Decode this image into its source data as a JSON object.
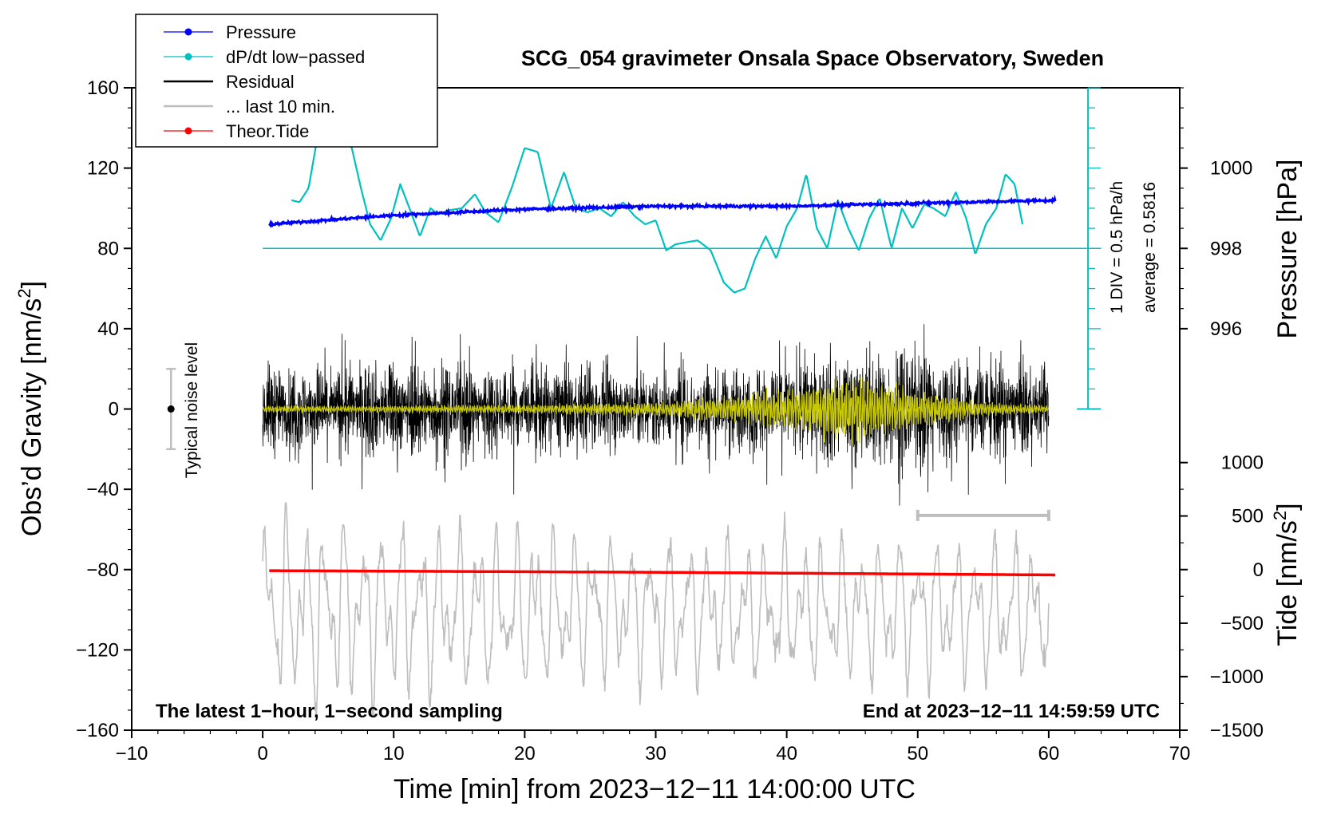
{
  "chart_data": {
    "type": "line",
    "title": "SCG_054 gravimeter Onsala Space Observatory, Sweden",
    "xlabel": "Time [min] from 2023−12−11 14:00:00 UTC",
    "ylabel_left": "Obs’d Gravity [nm/s",
    "ylabel_right_pressure": "Pressure [hPa]",
    "ylabel_right_tide": "Tide [nm/s",
    "superscript_2": "2",
    "close_bracket": "]",
    "xlim": [
      -10,
      70
    ],
    "ylim_gravity": [
      -160,
      160
    ],
    "x_ticks": [
      -10,
      0,
      10,
      20,
      30,
      40,
      50,
      60,
      70
    ],
    "x_tick_labels": [
      "−10",
      "0",
      "10",
      "20",
      "30",
      "40",
      "50",
      "60",
      "70"
    ],
    "y_ticks": [
      160,
      120,
      80,
      40,
      0,
      -40,
      -80,
      -120,
      -160
    ],
    "y_tick_labels": [
      "160",
      "120",
      "80",
      "40",
      "0",
      "−40",
      "−80",
      "−120",
      "−160"
    ],
    "pressure_ticks": [
      {
        "g": 120,
        "label": "1000"
      },
      {
        "g": 80,
        "label": "998"
      },
      {
        "g": 40,
        "label": "996"
      }
    ],
    "tide_ticks": [
      {
        "g": -26.7,
        "label": "1000"
      },
      {
        "g": -53.3,
        "label": "500"
      },
      {
        "g": -80,
        "label": "0"
      },
      {
        "g": -106.7,
        "label": "−500"
      },
      {
        "g": -133.3,
        "label": "−1000"
      },
      {
        "g": -160,
        "label": "−1500"
      }
    ],
    "legend": [
      {
        "label": "Pressure",
        "color": "#0000ff",
        "marker": true
      },
      {
        "label": "dP/dt low−passed",
        "color": "#00c0c0",
        "marker": true
      },
      {
        "label": "Residual",
        "color": "#000000",
        "marker": false
      },
      {
        "label": "... last 10 min.",
        "color": "#bebebe",
        "marker": false
      },
      {
        "label": "Theor.Tide",
        "color": "#ff0000",
        "marker": true
      }
    ],
    "annotations": {
      "noise_label": "Typical noise level",
      "noise_bar": {
        "x": -7,
        "center": 0,
        "half_range": 20
      },
      "scale_label": "1 DIV = 0.5 hPa/h",
      "average_label": "average = 0.5816",
      "dpdt_scale_x": 63,
      "dpdt_baseline_g": 80,
      "footer_left": "The latest 1−hour, 1−second sampling",
      "footer_right": "End at 2023−12−11 14:59:59 UTC",
      "last10_bracket": [
        50,
        60,
        -53
      ]
    },
    "series": [
      {
        "name": "Pressure",
        "color": "#0000ff",
        "unit": "g-equivalent",
        "x": [
          0.5,
          10,
          20,
          30,
          40,
          50,
          60.5
        ],
        "y": [
          92,
          96.5,
          99.5,
          101,
          101,
          102.5,
          104
        ]
      },
      {
        "name": "dP/dt low-passed",
        "color": "#00c0c0",
        "unit": "g-equivalent",
        "x": [
          2.2,
          2.8,
          3.5,
          4.3,
          5.0,
          5.8,
          6.8,
          7.5,
          8.2,
          9.0,
          9.8,
          10.5,
          11.2,
          12.0,
          12.8,
          13.4,
          14.2,
          15.2,
          16.2,
          17.0,
          18.0,
          19.0,
          20.0,
          21.0,
          22.0,
          23.0,
          23.9,
          24.8,
          25.7,
          26.6,
          27.5,
          28.4,
          29.2,
          30.0,
          30.8,
          31.5,
          32.3,
          33.2,
          34.2,
          35.2,
          36.0,
          36.8,
          37.6,
          38.4,
          39.2,
          40.0,
          40.8,
          41.5,
          42.3,
          43.1,
          43.9,
          44.7,
          45.5,
          46.3,
          47.1,
          48.0,
          48.8,
          49.6,
          50.5,
          51.2,
          52.1,
          52.9,
          53.7,
          54.4,
          55.2,
          56.0,
          56.7,
          57.4,
          58.0
        ],
        "y": [
          104,
          103,
          110,
          140,
          152,
          142,
          130,
          110,
          92,
          84,
          95,
          112,
          100,
          86,
          100,
          97,
          99,
          100,
          107,
          98,
          93,
          110,
          130,
          128,
          100,
          118,
          100,
          98,
          100,
          96,
          103,
          96,
          92,
          94,
          79,
          82,
          83,
          84,
          79,
          63,
          58,
          60,
          75,
          86,
          75,
          91,
          100,
          117,
          90,
          80,
          104,
          90,
          79,
          95,
          105,
          80,
          100,
          90,
          102,
          100,
          96,
          108,
          95,
          77,
          92,
          100,
          117,
          112,
          92
        ]
      },
      {
        "name": "Residual",
        "color": "#000000",
        "unit": "nm/s2",
        "x": [
          0,
          10,
          20,
          30,
          40,
          45,
          50,
          55,
          60
        ],
        "envelope": [
          35,
          40,
          38,
          33,
          40,
          48,
          52,
          42,
          35
        ]
      },
      {
        "name": "... last 10 min.",
        "color": "#bebebe",
        "unit": "nm/s2",
        "x": [
          0,
          30,
          60
        ],
        "y_center": [
          -100,
          -100,
          -100
        ],
        "amplitude": [
          40,
          30,
          30
        ]
      },
      {
        "name": "Theor.Tide",
        "color": "#ff0000",
        "unit": "nm/s2",
        "x": [
          0.5,
          30,
          60.5
        ],
        "y": [
          -10,
          -25,
          -50
        ]
      },
      {
        "name": "Residual filtered",
        "color": "#c8c800",
        "unit": "nm/s2",
        "x": [
          0,
          10,
          20,
          30,
          36,
          40,
          45,
          50,
          55,
          60
        ],
        "amplitude": [
          1.5,
          1.5,
          2,
          3,
          6,
          9,
          15,
          8,
          3,
          1.5
        ]
      }
    ]
  }
}
